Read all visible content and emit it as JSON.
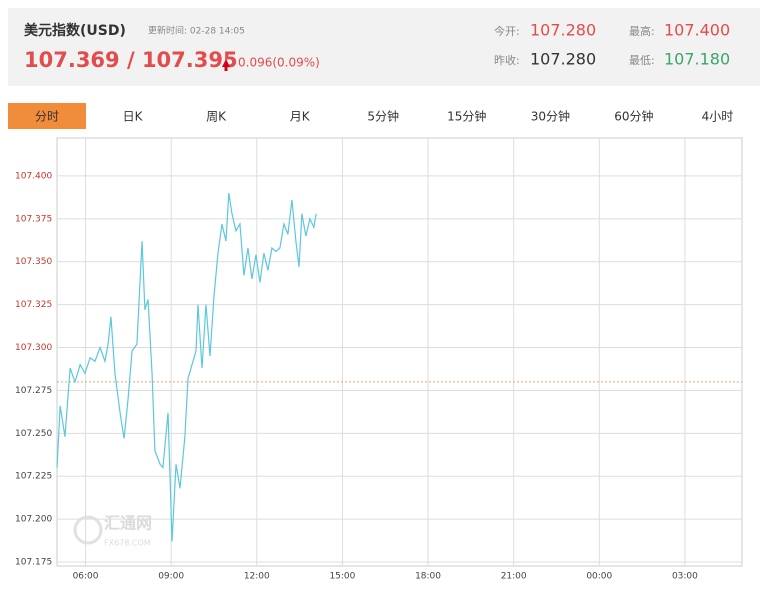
{
  "header": {
    "title": "美元指数(USD)",
    "update_time": "更新时间: 02-28 14:05",
    "price": "107.369 / 107.395",
    "change": "0.096(0.09%)",
    "stats": [
      {
        "label": "今开:",
        "value": "107.280"
      },
      {
        "label": "最高:",
        "value": "107.400"
      },
      {
        "label": "昨收:",
        "value": "107.280"
      },
      {
        "label": "最低:",
        "value": "107.180"
      }
    ]
  },
  "tabs": [
    "分时",
    "日K",
    "周K",
    "月K",
    "5分钟",
    "15分钟",
    "30分钟",
    "60分钟",
    "4小时"
  ],
  "watermark": {
    "name": "汇通网",
    "site": "FX678.COM"
  },
  "chart_data": {
    "type": "line",
    "color": "#5bc8dc",
    "baseline": 107.28,
    "grid": true,
    "x": [
      5.0,
      5.11,
      5.28,
      5.46,
      5.63,
      5.81,
      5.98,
      6.16,
      6.33,
      6.51,
      6.68,
      6.79,
      6.89,
      7.03,
      7.21,
      7.35,
      7.49,
      7.63,
      7.8,
      7.98,
      8.08,
      8.19,
      8.33,
      8.43,
      8.61,
      8.71,
      8.89,
      9.03,
      9.17,
      9.31,
      9.48,
      9.59,
      9.73,
      9.87,
      9.94,
      10.08,
      10.22,
      10.36,
      10.5,
      10.64,
      10.78,
      10.92,
      11.02,
      11.13,
      11.27,
      11.41,
      11.55,
      11.69,
      11.83,
      11.97,
      12.11,
      12.25,
      12.39,
      12.53,
      12.67,
      12.81,
      12.95,
      13.09,
      13.23,
      13.37,
      13.48,
      13.58,
      13.72,
      13.86,
      14.0,
      14.08
    ],
    "values": [
      107.23,
      107.266,
      107.248,
      107.288,
      107.28,
      107.29,
      107.285,
      107.294,
      107.292,
      107.3,
      107.292,
      107.302,
      107.318,
      107.285,
      107.262,
      107.247,
      107.27,
      107.298,
      107.302,
      107.362,
      107.322,
      107.328,
      107.285,
      107.24,
      107.232,
      107.23,
      107.262,
      107.187,
      107.232,
      107.218,
      107.248,
      107.282,
      107.29,
      107.298,
      107.325,
      107.288,
      107.325,
      107.295,
      107.33,
      107.355,
      107.372,
      107.362,
      107.39,
      107.378,
      107.368,
      107.372,
      107.342,
      107.358,
      107.34,
      107.354,
      107.338,
      107.355,
      107.345,
      107.358,
      107.356,
      107.358,
      107.372,
      107.366,
      107.386,
      107.362,
      107.347,
      107.378,
      107.365,
      107.375,
      107.37,
      107.378
    ],
    "xlim": [
      5,
      29
    ],
    "xticks": [
      {
        "value": 6,
        "label": "06:00"
      },
      {
        "value": 9,
        "label": "09:00"
      },
      {
        "value": 12,
        "label": "12:00"
      },
      {
        "value": 15,
        "label": "15:00"
      },
      {
        "value": 18,
        "label": "18:00"
      },
      {
        "value": 21,
        "label": "21:00"
      },
      {
        "value": 24,
        "label": "00:00"
      },
      {
        "value": 27,
        "label": "03:00"
      }
    ],
    "ylim": [
      107.1727,
      107.4221
    ],
    "yticks": [
      107.175,
      {
        "value": 107.2,
        "label": "107.200"
      },
      107.225,
      {
        "value": 107.25,
        "label": "107.250"
      },
      107.275,
      {
        "value": 107.3,
        "label": "107.300"
      },
      107.325,
      {
        "value": 107.35,
        "label": "107.350"
      },
      107.375,
      {
        "value": 107.4,
        "label": "107.400"
      }
    ]
  }
}
